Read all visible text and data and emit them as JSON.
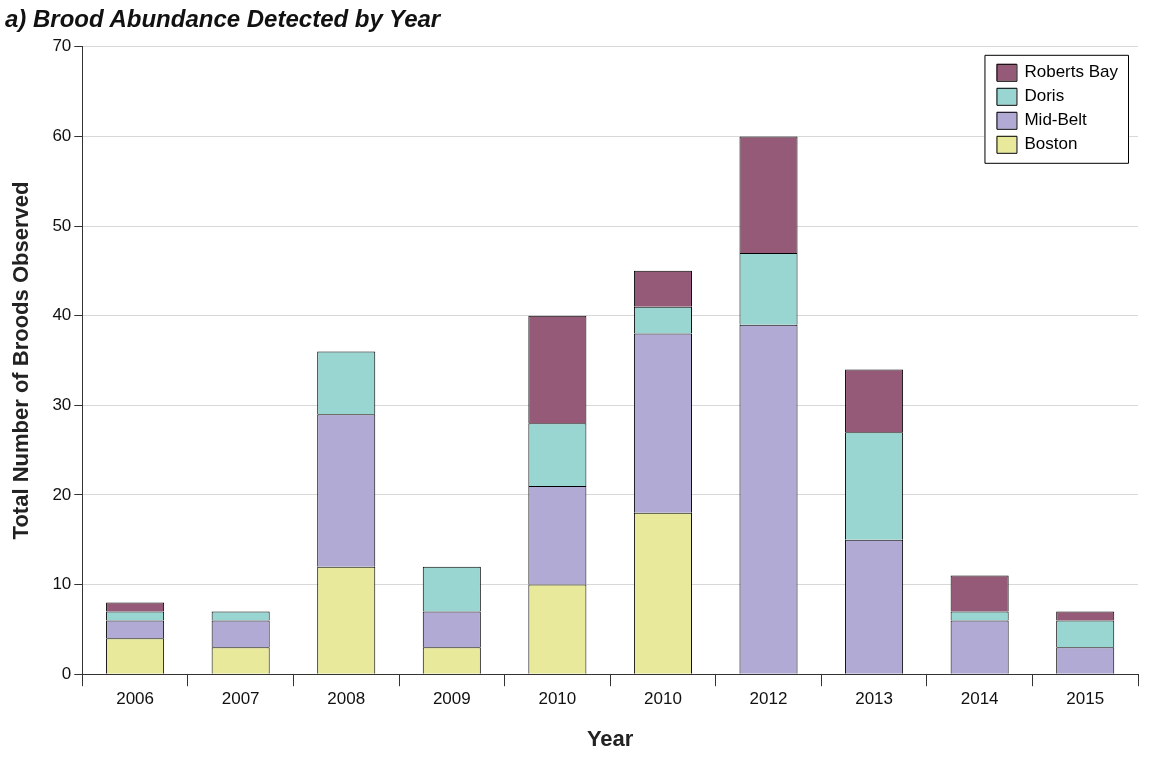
{
  "chart_data": {
    "type": "bar",
    "title": "a) Brood Abundance Detected by Year",
    "xlabel": "Year",
    "ylabel": "Total Number of Broods Observed",
    "categories": [
      "2006",
      "2007",
      "2008",
      "2009",
      "2010",
      "2010",
      "2012",
      "2013",
      "2014",
      "2015"
    ],
    "series": [
      {
        "name": "Boston",
        "color": "#e8e99a",
        "values": [
          4,
          3,
          12,
          3,
          10,
          18,
          null,
          null,
          null,
          null
        ]
      },
      {
        "name": "Mid-Belt",
        "color": "#b0aad4",
        "values": [
          2,
          3,
          17,
          4,
          11,
          20,
          39,
          15,
          6,
          3
        ]
      },
      {
        "name": "Doris",
        "color": "#99d6d2",
        "values": [
          1,
          1,
          7,
          5,
          7,
          3,
          8,
          12,
          1,
          3
        ]
      },
      {
        "name": "Roberts Bay",
        "color": "#955a78",
        "values": [
          1,
          null,
          null,
          null,
          12,
          4,
          13,
          7,
          4,
          1
        ]
      }
    ],
    "stacked": true,
    "ylim": [
      0,
      70
    ],
    "yticks": [
      0,
      10,
      20,
      30,
      40,
      50,
      60,
      70
    ],
    "grid": "y",
    "legend": "top right"
  }
}
